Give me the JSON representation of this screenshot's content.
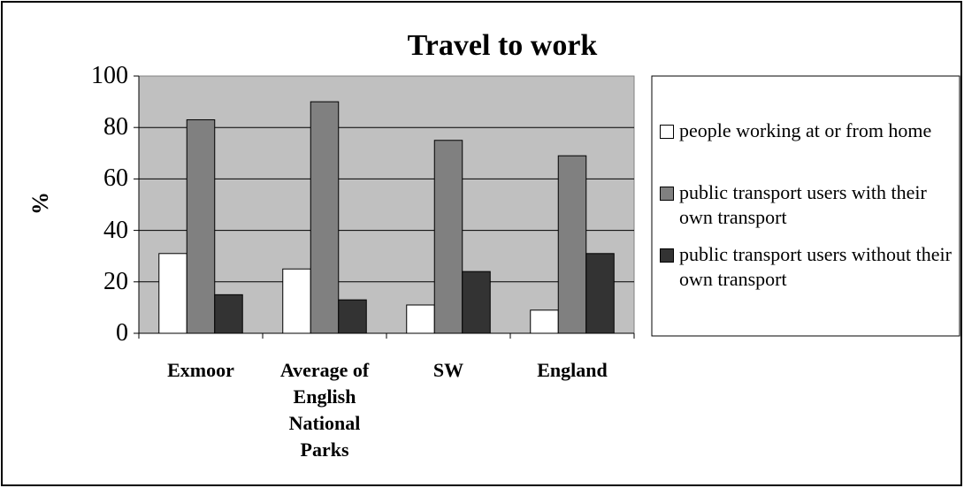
{
  "chart_data": {
    "type": "bar",
    "title": "Travel to work",
    "y_label": "%",
    "categories": [
      "Exmoor",
      "Average of English National Parks",
      "SW",
      "England"
    ],
    "series": [
      {
        "name": "people working at or from home",
        "color": "#ffffff",
        "values": [
          31,
          25,
          11,
          9
        ]
      },
      {
        "name": "public transport users with their own transport",
        "color": "#808080",
        "values": [
          83,
          90,
          75,
          69
        ]
      },
      {
        "name": "public transport users without their own transport",
        "color": "#333333",
        "values": [
          15,
          13,
          24,
          31
        ]
      }
    ],
    "ylim": [
      0,
      100
    ],
    "yticks": [
      0,
      20,
      40,
      60,
      80,
      100
    ],
    "grid": true,
    "legend": "right"
  }
}
